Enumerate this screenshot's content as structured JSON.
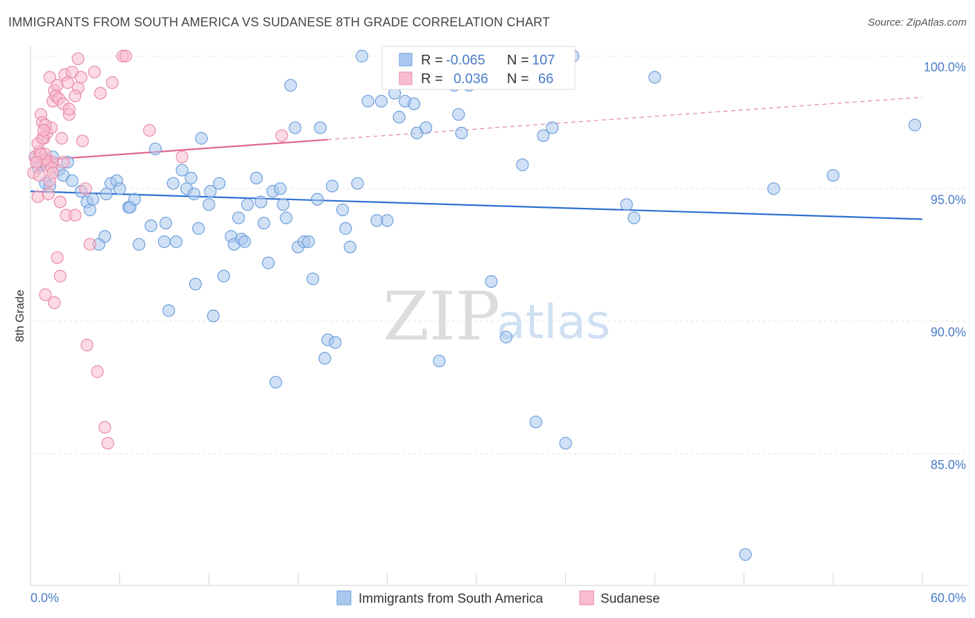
{
  "header": {
    "title": "IMMIGRANTS FROM SOUTH AMERICA VS SUDANESE 8TH GRADE CORRELATION CHART",
    "source": "Source: ZipAtlas.com"
  },
  "watermark": {
    "zip": "ZIP",
    "atlas": "atlas"
  },
  "legend_top": {
    "rows": [
      {
        "r_label": "R =",
        "r_value": "-0.065",
        "n_label": "N =",
        "n_value": "107"
      },
      {
        "r_label": "R =",
        "r_value": "0.036",
        "n_label": "N =",
        "n_value": "66"
      }
    ]
  },
  "chart_data": {
    "type": "scatter",
    "title": "IMMIGRANTS FROM SOUTH AMERICA VS SUDANESE 8TH GRADE CORRELATION CHART",
    "xlabel": "",
    "ylabel": "8th Grade",
    "xlim": [
      0,
      60
    ],
    "ylim": [
      80.5,
      101.3
    ],
    "x_tick_labels": [
      "0.0%",
      "60.0%"
    ],
    "y_ticks": [
      85,
      90,
      95,
      100
    ],
    "y_tick_labels": [
      "85.0%",
      "90.0%",
      "95.0%",
      "100.0%"
    ],
    "grid": true,
    "legend_position": "top-center",
    "colors": {
      "blue_fill": "#a9c8ef",
      "blue_stroke": "#6d9edb",
      "blue_line": "#2c6fcf",
      "pink_fill": "#f7bccd",
      "pink_stroke": "#ea8aa8",
      "pink_line": "#e0668d"
    },
    "series": [
      {
        "name": "Immigrants from South America",
        "R": -0.065,
        "N": 107,
        "trend": {
          "x": [
            0,
            60
          ],
          "y": [
            94.9,
            93.85
          ]
        },
        "x": [
          0.3,
          0.5,
          0.8,
          1.0,
          1.3,
          1.5,
          1.9,
          2.2,
          2.5,
          2.8,
          3.4,
          3.8,
          4.0,
          4.2,
          4.6,
          5.0,
          5.1,
          5.4,
          5.8,
          6.0,
          6.6,
          6.7,
          7.0,
          7.3,
          8.1,
          8.4,
          9.0,
          9.1,
          9.3,
          9.6,
          9.8,
          10.2,
          10.5,
          10.8,
          11.0,
          11.1,
          11.3,
          11.5,
          12.0,
          12.1,
          12.3,
          12.7,
          13.0,
          13.5,
          13.7,
          14.0,
          14.2,
          14.4,
          14.6,
          15.2,
          15.5,
          15.7,
          16.0,
          16.3,
          16.5,
          16.8,
          17.0,
          17.2,
          17.5,
          17.8,
          18.0,
          18.4,
          18.7,
          19.0,
          19.3,
          19.5,
          19.8,
          20.0,
          20.3,
          20.5,
          21.0,
          21.2,
          21.5,
          22.0,
          22.3,
          22.7,
          23.3,
          23.6,
          24.0,
          24.5,
          24.8,
          25.2,
          25.8,
          26.0,
          26.6,
          26.8,
          27.1,
          27.5,
          28.0,
          28.5,
          28.8,
          29.0,
          29.5,
          30.0,
          30.5,
          31.0,
          32.0,
          33.1,
          34.0,
          34.5,
          35.1,
          36.0,
          36.5,
          40.1,
          40.6,
          42.0,
          48.1,
          50.0,
          54.0,
          59.5
        ],
        "y": [
          96.2,
          95.8,
          96.0,
          95.2,
          95.1,
          96.2,
          95.7,
          95.5,
          96.0,
          95.3,
          94.9,
          94.5,
          94.2,
          94.6,
          92.9,
          93.2,
          94.8,
          95.2,
          95.3,
          95.0,
          94.3,
          94.3,
          94.6,
          92.9,
          93.6,
          96.5,
          93.0,
          93.7,
          90.4,
          95.2,
          93.0,
          95.7,
          95.0,
          95.4,
          94.8,
          91.4,
          93.5,
          96.9,
          94.4,
          94.9,
          90.2,
          95.2,
          91.7,
          93.2,
          92.9,
          93.9,
          93.1,
          93.0,
          94.4,
          95.4,
          94.5,
          93.7,
          92.2,
          94.9,
          87.7,
          95.0,
          94.4,
          93.9,
          98.9,
          97.3,
          92.8,
          93.0,
          93.0,
          91.6,
          94.6,
          97.3,
          88.6,
          89.3,
          95.1,
          89.2,
          94.2,
          93.5,
          92.8,
          95.2,
          100.0,
          98.3,
          93.8,
          98.3,
          93.8,
          98.6,
          97.7,
          98.3,
          98.2,
          97.1,
          97.3,
          99.0,
          100.0,
          88.5,
          99.7,
          98.9,
          97.8,
          97.1,
          98.9,
          99.8,
          99.6,
          91.5,
          89.4,
          95.9,
          86.2,
          97.0,
          97.3,
          85.4,
          100.0,
          94.4,
          93.9,
          99.2,
          81.2,
          95.0,
          95.5,
          97.4
        ],
        "_sizes": []
      },
      {
        "name": "Sudanese",
        "R": 0.036,
        "N": 66,
        "trend": {
          "x": [
            0,
            20
          ],
          "y": [
            96.05,
            96.85
          ],
          "dashed_to": {
            "x": 60,
            "y": 98.45
          }
        },
        "x": [
          0.2,
          0.3,
          0.4,
          0.5,
          0.6,
          0.7,
          0.8,
          0.9,
          1.0,
          1.0,
          1.1,
          1.2,
          1.3,
          1.4,
          1.5,
          1.5,
          1.6,
          1.7,
          1.8,
          1.9,
          2.0,
          2.1,
          2.2,
          2.3,
          2.4,
          2.5,
          2.6,
          2.8,
          3.0,
          3.2,
          3.4,
          3.5,
          3.7,
          3.8,
          4.0,
          4.3,
          4.5,
          4.7,
          5.0,
          5.2,
          5.5,
          6.2,
          6.4,
          8.0,
          10.2,
          16.9,
          0.5,
          1.0,
          1.3,
          0.8,
          0.6,
          1.1,
          1.8,
          2.0,
          1.6,
          0.9,
          1.4,
          2.2,
          3.0,
          1.0,
          0.7,
          0.4,
          1.2,
          1.5,
          2.6,
          3.2
        ],
        "y": [
          95.6,
          96.2,
          96.0,
          94.7,
          96.4,
          97.8,
          97.5,
          96.9,
          96.3,
          91.0,
          97.1,
          96.0,
          99.2,
          97.3,
          98.3,
          96.0,
          98.7,
          98.5,
          98.9,
          98.4,
          94.5,
          96.9,
          98.2,
          99.3,
          94.0,
          99.0,
          97.8,
          99.4,
          94.0,
          98.8,
          99.2,
          96.8,
          95.0,
          89.1,
          92.9,
          99.4,
          88.1,
          98.6,
          86.0,
          85.4,
          99.0,
          100.0,
          100.0,
          97.2,
          96.2,
          97.0,
          96.7,
          97.4,
          95.3,
          96.9,
          95.5,
          95.9,
          92.4,
          91.7,
          90.7,
          97.2,
          95.8,
          96.0,
          98.5,
          96.1,
          96.3,
          96.0,
          94.8,
          95.6,
          98.0,
          99.9
        ]
      }
    ],
    "bottom_legend": [
      "Immigrants from South America",
      "Sudanese"
    ]
  }
}
